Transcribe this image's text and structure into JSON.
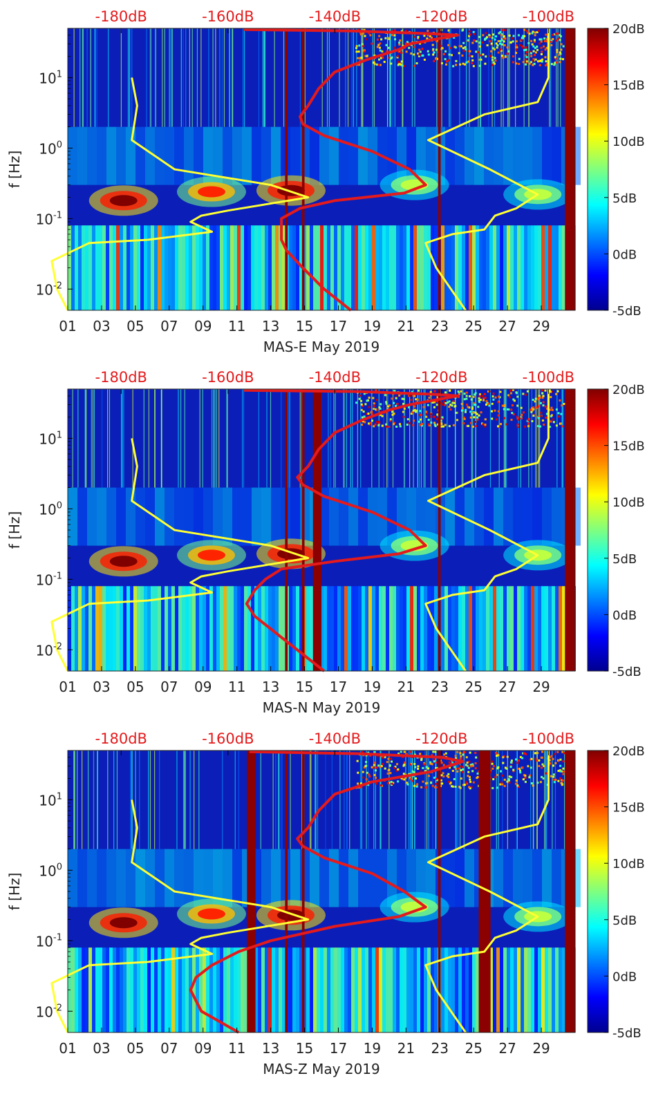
{
  "chart_data": [
    {
      "type": "heatmap",
      "station": "MAS-E",
      "xlabel": "MAS-E May 2019",
      "ylabel": "f [Hz]",
      "x_ticks": [
        "01",
        "03",
        "05",
        "07",
        "09",
        "11",
        "13",
        "15",
        "17",
        "19",
        "21",
        "23",
        "25",
        "27",
        "29"
      ],
      "x_range_days": [
        1,
        31
      ],
      "y_scale": "log",
      "y_range_hz": [
        0.005,
        50
      ],
      "y_ticks": [
        {
          "exp": "-2",
          "value": 0.01
        },
        {
          "exp": "-1",
          "value": 0.1
        },
        {
          "exp": "0",
          "value": 1
        },
        {
          "exp": "1",
          "value": 10
        }
      ],
      "top_ticks": [
        "-180dB",
        "-160dB",
        "-140dB",
        "-120dB",
        "-100dB"
      ],
      "top_range_db": [
        -190,
        -95
      ],
      "colorbar": {
        "labels": [
          "20dB",
          "15dB",
          "10dB",
          "5dB",
          "0dB",
          "-5dB"
        ],
        "range": [
          -5,
          20
        ],
        "colormap": "jet"
      },
      "saturated_days": [
        [
          13.85,
          14.0
        ],
        [
          14.85,
          15.0
        ],
        [
          22.9,
          23.05
        ],
        [
          30.4,
          31.0
        ]
      ],
      "hotspots": [
        {
          "day": 4.3,
          "f": 0.18,
          "level": 20
        },
        {
          "day": 9.5,
          "f": 0.24,
          "level": 16
        },
        {
          "day": 14.2,
          "f": 0.25,
          "level": 20
        },
        {
          "day": 21.5,
          "f": 0.3,
          "level": 9
        },
        {
          "day": 28.8,
          "f": 0.22,
          "level": 9
        }
      ],
      "series": [
        {
          "color": "#ffff33",
          "points": [
            {
              "f": 50,
              "db": -100
            },
            {
              "f": 10,
              "db": -100
            },
            {
              "f": 4.5,
              "db": -102
            },
            {
              "f": 3,
              "db": -112
            },
            {
              "f": 1.3,
              "db": -122.5
            },
            {
              "f": 0.5,
              "db": -111
            },
            {
              "f": 0.22,
              "db": -102
            },
            {
              "f": 0.14,
              "db": -106
            },
            {
              "f": 0.11,
              "db": -110
            },
            {
              "f": 0.07,
              "db": -112
            },
            {
              "f": 0.06,
              "db": -118
            },
            {
              "f": 0.045,
              "db": -123
            },
            {
              "f": 0.02,
              "db": -121
            },
            {
              "f": 0.005,
              "db": -115.5
            }
          ]
        },
        {
          "color": "#ffff33",
          "points": [
            {
              "f": 10,
              "db": -178
            },
            {
              "f": 4,
              "db": -177
            },
            {
              "f": 1.3,
              "db": -178
            },
            {
              "f": 0.5,
              "db": -170
            },
            {
              "f": 0.3,
              "db": -152
            },
            {
              "f": 0.2,
              "db": -145
            },
            {
              "f": 0.13,
              "db": -160
            },
            {
              "f": 0.11,
              "db": -165
            },
            {
              "f": 0.09,
              "db": -167
            },
            {
              "f": 0.065,
              "db": -163
            },
            {
              "f": 0.05,
              "db": -175
            },
            {
              "f": 0.045,
              "db": -186
            },
            {
              "f": 0.025,
              "db": -193
            },
            {
              "f": 0.01,
              "db": -192
            },
            {
              "f": 0.005,
              "db": -190
            }
          ]
        },
        {
          "color": "#e41a1c",
          "points": [
            {
              "f": 48,
              "db": -157
            },
            {
              "f": 46,
              "db": -137
            },
            {
              "f": 42,
              "db": -122
            },
            {
              "f": 40,
              "db": -117
            },
            {
              "f": 30,
              "db": -126
            },
            {
              "f": 25,
              "db": -128
            },
            {
              "f": 18,
              "db": -134
            },
            {
              "f": 12,
              "db": -140
            },
            {
              "f": 7,
              "db": -143
            },
            {
              "f": 4,
              "db": -145
            },
            {
              "f": 2.8,
              "db": -146.5
            },
            {
              "f": 2.2,
              "db": -146
            },
            {
              "f": 1.5,
              "db": -142
            },
            {
              "f": 0.9,
              "db": -133
            },
            {
              "f": 0.5,
              "db": -126
            },
            {
              "f": 0.3,
              "db": -123
            },
            {
              "f": 0.23,
              "db": -127
            },
            {
              "f": 0.18,
              "db": -140
            },
            {
              "f": 0.14,
              "db": -146.5
            },
            {
              "f": 0.1,
              "db": -150
            },
            {
              "f": 0.07,
              "db": -150
            },
            {
              "f": 0.05,
              "db": -150
            },
            {
              "f": 0.035,
              "db": -149
            },
            {
              "f": 0.02,
              "db": -146
            },
            {
              "f": 0.01,
              "db": -142
            },
            {
              "f": 0.005,
              "db": -137
            }
          ]
        }
      ]
    },
    {
      "type": "heatmap",
      "station": "MAS-N",
      "xlabel": "MAS-N May 2019",
      "ylabel": "f [Hz]",
      "x_ticks": [
        "01",
        "03",
        "05",
        "07",
        "09",
        "11",
        "13",
        "15",
        "17",
        "19",
        "21",
        "23",
        "25",
        "27",
        "29"
      ],
      "x_range_days": [
        1,
        31
      ],
      "y_scale": "log",
      "y_range_hz": [
        0.005,
        50
      ],
      "y_ticks": [
        {
          "exp": "-2",
          "value": 0.01
        },
        {
          "exp": "-1",
          "value": 0.1
        },
        {
          "exp": "0",
          "value": 1
        },
        {
          "exp": "1",
          "value": 10
        }
      ],
      "top_ticks": [
        "-180dB",
        "-160dB",
        "-140dB",
        "-120dB",
        "-100dB"
      ],
      "top_range_db": [
        -190,
        -95
      ],
      "colorbar": {
        "labels": [
          "20dB",
          "15dB",
          "10dB",
          "5dB",
          "0dB",
          "-5dB"
        ],
        "range": [
          -5,
          20
        ],
        "colormap": "jet"
      },
      "saturated_days": [
        [
          13.85,
          14.0
        ],
        [
          14.85,
          15.0
        ],
        [
          15.5,
          16.0
        ],
        [
          22.9,
          23.05
        ],
        [
          30.4,
          31.0
        ]
      ],
      "hotspots": [
        {
          "day": 4.3,
          "f": 0.18,
          "level": 20
        },
        {
          "day": 9.5,
          "f": 0.22,
          "level": 16
        },
        {
          "day": 14.2,
          "f": 0.23,
          "level": 20
        },
        {
          "day": 21.5,
          "f": 0.3,
          "level": 9
        },
        {
          "day": 28.8,
          "f": 0.22,
          "level": 9
        }
      ],
      "series": [
        {
          "color": "#ffff33",
          "points": [
            {
              "f": 50,
              "db": -100
            },
            {
              "f": 10,
              "db": -100
            },
            {
              "f": 4.5,
              "db": -102
            },
            {
              "f": 3,
              "db": -112
            },
            {
              "f": 1.3,
              "db": -122.5
            },
            {
              "f": 0.5,
              "db": -111
            },
            {
              "f": 0.22,
              "db": -102
            },
            {
              "f": 0.14,
              "db": -106
            },
            {
              "f": 0.11,
              "db": -110
            },
            {
              "f": 0.07,
              "db": -112
            },
            {
              "f": 0.06,
              "db": -118
            },
            {
              "f": 0.045,
              "db": -123
            },
            {
              "f": 0.02,
              "db": -121
            },
            {
              "f": 0.005,
              "db": -115.5
            }
          ]
        },
        {
          "color": "#ffff33",
          "points": [
            {
              "f": 10,
              "db": -178
            },
            {
              "f": 4,
              "db": -177
            },
            {
              "f": 1.3,
              "db": -178
            },
            {
              "f": 0.5,
              "db": -170
            },
            {
              "f": 0.3,
              "db": -152
            },
            {
              "f": 0.2,
              "db": -145
            },
            {
              "f": 0.13,
              "db": -160
            },
            {
              "f": 0.11,
              "db": -165
            },
            {
              "f": 0.09,
              "db": -167
            },
            {
              "f": 0.065,
              "db": -163
            },
            {
              "f": 0.05,
              "db": -175
            },
            {
              "f": 0.045,
              "db": -186
            },
            {
              "f": 0.025,
              "db": -193
            },
            {
              "f": 0.01,
              "db": -192
            },
            {
              "f": 0.005,
              "db": -190
            }
          ]
        },
        {
          "color": "#e41a1c",
          "points": [
            {
              "f": 48,
              "db": -157
            },
            {
              "f": 46,
              "db": -135
            },
            {
              "f": 42,
              "db": -121
            },
            {
              "f": 40,
              "db": -117
            },
            {
              "f": 30,
              "db": -126
            },
            {
              "f": 25,
              "db": -130
            },
            {
              "f": 18,
              "db": -135
            },
            {
              "f": 12,
              "db": -140
            },
            {
              "f": 7,
              "db": -143
            },
            {
              "f": 4,
              "db": -145
            },
            {
              "f": 2.8,
              "db": -147
            },
            {
              "f": 2.2,
              "db": -146
            },
            {
              "f": 1.5,
              "db": -142
            },
            {
              "f": 0.9,
              "db": -133
            },
            {
              "f": 0.5,
              "db": -126
            },
            {
              "f": 0.3,
              "db": -123
            },
            {
              "f": 0.23,
              "db": -128
            },
            {
              "f": 0.18,
              "db": -140
            },
            {
              "f": 0.14,
              "db": -150
            },
            {
              "f": 0.1,
              "db": -153
            },
            {
              "f": 0.07,
              "db": -155
            },
            {
              "f": 0.045,
              "db": -156.5
            },
            {
              "f": 0.03,
              "db": -155
            },
            {
              "f": 0.015,
              "db": -150
            },
            {
              "f": 0.005,
              "db": -142
            }
          ]
        }
      ]
    },
    {
      "type": "heatmap",
      "station": "MAS-Z",
      "xlabel": "MAS-Z May 2019",
      "ylabel": "f [Hz]",
      "x_ticks": [
        "01",
        "03",
        "05",
        "07",
        "09",
        "11",
        "13",
        "15",
        "17",
        "19",
        "21",
        "23",
        "25",
        "27",
        "29"
      ],
      "x_range_days": [
        1,
        31
      ],
      "y_scale": "log",
      "y_range_hz": [
        0.005,
        50
      ],
      "y_ticks": [
        {
          "exp": "-2",
          "value": 0.01
        },
        {
          "exp": "-1",
          "value": 0.1
        },
        {
          "exp": "0",
          "value": 1
        },
        {
          "exp": "1",
          "value": 10
        }
      ],
      "top_ticks": [
        "-180dB",
        "-160dB",
        "-140dB",
        "-120dB",
        "-100dB"
      ],
      "top_range_db": [
        -190,
        -95
      ],
      "colorbar": {
        "labels": [
          "20dB",
          "15dB",
          "10dB",
          "5dB",
          "0dB",
          "-5dB"
        ],
        "range": [
          -5,
          20
        ],
        "colormap": "jet"
      },
      "saturated_days": [
        [
          11.6,
          12.1
        ],
        [
          13.85,
          14.0
        ],
        [
          14.85,
          15.0
        ],
        [
          22.9,
          23.05
        ],
        [
          25.3,
          26.0
        ],
        [
          30.4,
          31.0
        ]
      ],
      "hotspots": [
        {
          "day": 4.3,
          "f": 0.18,
          "level": 20
        },
        {
          "day": 9.5,
          "f": 0.24,
          "level": 16
        },
        {
          "day": 14.2,
          "f": 0.23,
          "level": 20
        },
        {
          "day": 21.5,
          "f": 0.3,
          "level": 9
        },
        {
          "day": 28.8,
          "f": 0.22,
          "level": 9
        }
      ],
      "series": [
        {
          "color": "#ffff33",
          "points": [
            {
              "f": 50,
              "db": -100
            },
            {
              "f": 10,
              "db": -100
            },
            {
              "f": 4.5,
              "db": -102
            },
            {
              "f": 3,
              "db": -112
            },
            {
              "f": 1.3,
              "db": -122.5
            },
            {
              "f": 0.5,
              "db": -111
            },
            {
              "f": 0.22,
              "db": -102
            },
            {
              "f": 0.14,
              "db": -106
            },
            {
              "f": 0.11,
              "db": -110
            },
            {
              "f": 0.07,
              "db": -112
            },
            {
              "f": 0.06,
              "db": -118
            },
            {
              "f": 0.045,
              "db": -123
            },
            {
              "f": 0.02,
              "db": -121
            },
            {
              "f": 0.005,
              "db": -115.5
            }
          ]
        },
        {
          "color": "#ffff33",
          "points": [
            {
              "f": 10,
              "db": -178
            },
            {
              "f": 4,
              "db": -177
            },
            {
              "f": 1.3,
              "db": -178
            },
            {
              "f": 0.5,
              "db": -170
            },
            {
              "f": 0.3,
              "db": -152
            },
            {
              "f": 0.2,
              "db": -145
            },
            {
              "f": 0.13,
              "db": -160
            },
            {
              "f": 0.11,
              "db": -165
            },
            {
              "f": 0.09,
              "db": -167
            },
            {
              "f": 0.065,
              "db": -163
            },
            {
              "f": 0.05,
              "db": -175
            },
            {
              "f": 0.045,
              "db": -186
            },
            {
              "f": 0.025,
              "db": -193
            },
            {
              "f": 0.01,
              "db": -192
            },
            {
              "f": 0.005,
              "db": -190
            }
          ]
        },
        {
          "color": "#e41a1c",
          "points": [
            {
              "f": 48,
              "db": -156
            },
            {
              "f": 45,
              "db": -135
            },
            {
              "f": 40,
              "db": -120
            },
            {
              "f": 35,
              "db": -116
            },
            {
              "f": 25,
              "db": -122
            },
            {
              "f": 18,
              "db": -133
            },
            {
              "f": 12,
              "db": -140
            },
            {
              "f": 7,
              "db": -143
            },
            {
              "f": 4,
              "db": -145
            },
            {
              "f": 2.8,
              "db": -147
            },
            {
              "f": 2.2,
              "db": -146
            },
            {
              "f": 1.5,
              "db": -142
            },
            {
              "f": 0.9,
              "db": -133
            },
            {
              "f": 0.5,
              "db": -127
            },
            {
              "f": 0.3,
              "db": -123
            },
            {
              "f": 0.22,
              "db": -128
            },
            {
              "f": 0.16,
              "db": -140
            },
            {
              "f": 0.1,
              "db": -152
            },
            {
              "f": 0.07,
              "db": -158
            },
            {
              "f": 0.045,
              "db": -163
            },
            {
              "f": 0.03,
              "db": -166
            },
            {
              "f": 0.02,
              "db": -167
            },
            {
              "f": 0.01,
              "db": -165
            },
            {
              "f": 0.005,
              "db": -158
            }
          ]
        }
      ]
    }
  ]
}
